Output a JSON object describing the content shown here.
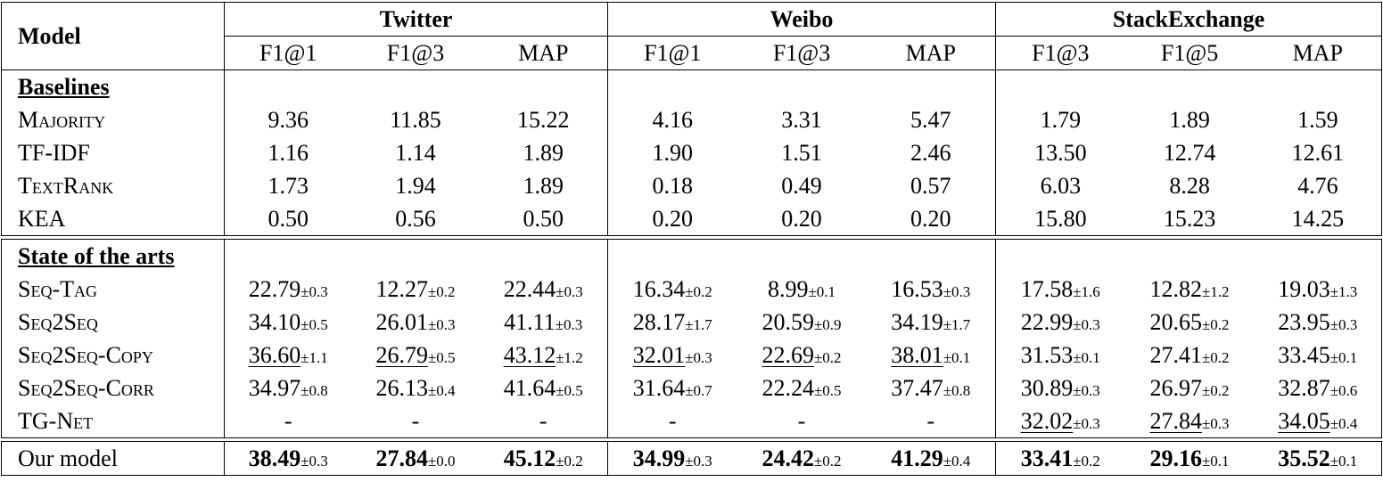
{
  "header": {
    "model_label": "Model",
    "groups": [
      {
        "name": "Twitter",
        "metrics": [
          "F1@1",
          "F1@3",
          "MAP"
        ]
      },
      {
        "name": "Weibo",
        "metrics": [
          "F1@1",
          "F1@3",
          "MAP"
        ]
      },
      {
        "name": "StackExchange",
        "metrics": [
          "F1@3",
          "F1@5",
          "MAP"
        ]
      }
    ]
  },
  "sections": [
    {
      "title": "Baselines",
      "rows": [
        {
          "model": "Majority",
          "smallcaps": true,
          "cells": [
            {
              "v": "9.36"
            },
            {
              "v": "11.85"
            },
            {
              "v": "15.22"
            },
            {
              "v": "4.16"
            },
            {
              "v": "3.31"
            },
            {
              "v": "5.47"
            },
            {
              "v": "1.79"
            },
            {
              "v": "1.89"
            },
            {
              "v": "1.59"
            }
          ]
        },
        {
          "model": "TF-IDF",
          "smallcaps": false,
          "cells": [
            {
              "v": "1.16"
            },
            {
              "v": "1.14"
            },
            {
              "v": "1.89"
            },
            {
              "v": "1.90"
            },
            {
              "v": "1.51"
            },
            {
              "v": "2.46"
            },
            {
              "v": "13.50"
            },
            {
              "v": "12.74"
            },
            {
              "v": "12.61"
            }
          ]
        },
        {
          "model": "TextRank",
          "smallcaps": true,
          "cells": [
            {
              "v": "1.73"
            },
            {
              "v": "1.94"
            },
            {
              "v": "1.89"
            },
            {
              "v": "0.18"
            },
            {
              "v": "0.49"
            },
            {
              "v": "0.57"
            },
            {
              "v": "6.03"
            },
            {
              "v": "8.28"
            },
            {
              "v": "4.76"
            }
          ]
        },
        {
          "model": "KEA",
          "smallcaps": false,
          "cells": [
            {
              "v": "0.50"
            },
            {
              "v": "0.56"
            },
            {
              "v": "0.50"
            },
            {
              "v": "0.20"
            },
            {
              "v": "0.20"
            },
            {
              "v": "0.20"
            },
            {
              "v": "15.80"
            },
            {
              "v": "15.23"
            },
            {
              "v": "14.25"
            }
          ]
        }
      ]
    },
    {
      "title": "State of the arts",
      "rows": [
        {
          "model": "Seq-Tag",
          "smallcaps": true,
          "cells": [
            {
              "v": "22.79",
              "sd": "±0.3"
            },
            {
              "v": "12.27",
              "sd": "±0.2"
            },
            {
              "v": "22.44",
              "sd": "±0.3"
            },
            {
              "v": "16.34",
              "sd": "±0.2"
            },
            {
              "v": "8.99",
              "sd": "±0.1"
            },
            {
              "v": "16.53",
              "sd": "±0.3"
            },
            {
              "v": "17.58",
              "sd": "±1.6"
            },
            {
              "v": "12.82",
              "sd": "±1.2"
            },
            {
              "v": "19.03",
              "sd": "±1.3"
            }
          ]
        },
        {
          "model": "Seq2Seq",
          "smallcaps": true,
          "cells": [
            {
              "v": "34.10",
              "sd": "±0.5"
            },
            {
              "v": "26.01",
              "sd": "±0.3"
            },
            {
              "v": "41.11",
              "sd": "±0.3"
            },
            {
              "v": "28.17",
              "sd": "±1.7"
            },
            {
              "v": "20.59",
              "sd": "±0.9"
            },
            {
              "v": "34.19",
              "sd": "±1.7"
            },
            {
              "v": "22.99",
              "sd": "±0.3"
            },
            {
              "v": "20.65",
              "sd": "±0.2"
            },
            {
              "v": "23.95",
              "sd": "±0.3"
            }
          ]
        },
        {
          "model": "Seq2Seq-Copy",
          "smallcaps": true,
          "cells": [
            {
              "v": "36.60",
              "sd": "±1.1",
              "u": true
            },
            {
              "v": "26.79",
              "sd": "±0.5",
              "u": true
            },
            {
              "v": "43.12",
              "sd": "±1.2",
              "u": true
            },
            {
              "v": "32.01",
              "sd": "±0.3",
              "u": true
            },
            {
              "v": "22.69",
              "sd": "±0.2",
              "u": true
            },
            {
              "v": "38.01",
              "sd": "±0.1",
              "u": true
            },
            {
              "v": "31.53",
              "sd": "±0.1"
            },
            {
              "v": "27.41",
              "sd": "±0.2"
            },
            {
              "v": "33.45",
              "sd": "±0.1"
            }
          ]
        },
        {
          "model": "Seq2Seq-Corr",
          "smallcaps": true,
          "cells": [
            {
              "v": "34.97",
              "sd": "±0.8"
            },
            {
              "v": "26.13",
              "sd": "±0.4"
            },
            {
              "v": "41.64",
              "sd": "±0.5"
            },
            {
              "v": "31.64",
              "sd": "±0.7"
            },
            {
              "v": "22.24",
              "sd": "±0.5"
            },
            {
              "v": "37.47",
              "sd": "±0.8"
            },
            {
              "v": "30.89",
              "sd": "±0.3"
            },
            {
              "v": "26.97",
              "sd": "±0.2"
            },
            {
              "v": "32.87",
              "sd": "±0.6"
            }
          ]
        },
        {
          "model": "TG-Net",
          "smallcaps": true,
          "cells": [
            {
              "v": "-"
            },
            {
              "v": "-"
            },
            {
              "v": "-"
            },
            {
              "v": "-"
            },
            {
              "v": "-"
            },
            {
              "v": "-"
            },
            {
              "v": "32.02",
              "sd": "±0.3",
              "u": true
            },
            {
              "v": "27.84",
              "sd": "±0.3",
              "u": true
            },
            {
              "v": "34.05",
              "sd": "±0.4",
              "u": true
            }
          ]
        }
      ]
    },
    {
      "title": "",
      "rows": [
        {
          "model": "Our model",
          "smallcaps": false,
          "cells": [
            {
              "v": "38.49",
              "sd": "±0.3",
              "b": true
            },
            {
              "v": "27.84",
              "sd": "±0.0",
              "b": true
            },
            {
              "v": "45.12",
              "sd": "±0.2",
              "b": true
            },
            {
              "v": "34.99",
              "sd": "±0.3",
              "b": true
            },
            {
              "v": "24.42",
              "sd": "±0.2",
              "b": true
            },
            {
              "v": "41.29",
              "sd": "±0.4",
              "b": true
            },
            {
              "v": "33.41",
              "sd": "±0.2",
              "b": true
            },
            {
              "v": "29.16",
              "sd": "±0.1",
              "b": true
            },
            {
              "v": "35.52",
              "sd": "±0.1",
              "b": true
            }
          ]
        }
      ]
    }
  ]
}
